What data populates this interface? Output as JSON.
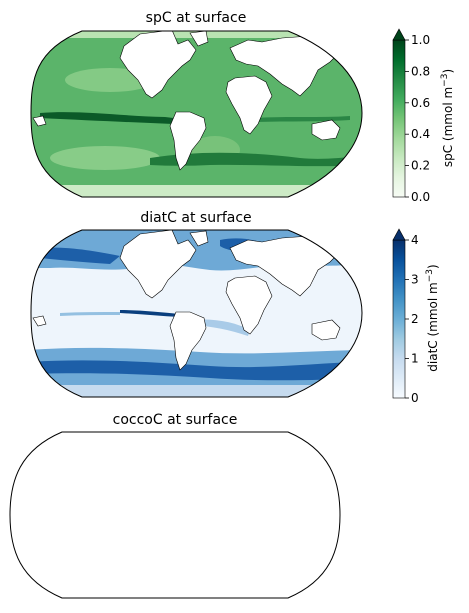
{
  "panels": [
    {
      "title": "spC at surface",
      "colorbar": {
        "label_main": "spC (mmol m",
        "label_exp": "−3",
        "label_tail": ")",
        "ticks": [
          "0.0",
          "0.2",
          "0.4",
          "0.6",
          "0.8",
          "1.0"
        ],
        "range": [
          0,
          1
        ],
        "extend": "max",
        "colors": [
          "#f7fcf5",
          "#e5f5e0",
          "#c7e9c0",
          "#a1d99b",
          "#74c476",
          "#41ab5d",
          "#238b45",
          "#006d2c",
          "#00441b"
        ]
      },
      "ocean_color": "#5bb46a",
      "band_color": "#0b5a28"
    },
    {
      "title": "diatC at surface",
      "colorbar": {
        "label_main": "diatC (mmol m",
        "label_exp": "−3",
        "label_tail": ")",
        "ticks": [
          "0",
          "1",
          "2",
          "3",
          "4"
        ],
        "range": [
          0,
          4
        ],
        "extend": "max",
        "colors": [
          "#f7fbff",
          "#deebf7",
          "#c6dbef",
          "#9ecae1",
          "#6baed6",
          "#4292c6",
          "#2171b5",
          "#08519c",
          "#08306b"
        ]
      },
      "ocean_color": "#eef5fc",
      "band_color": "#1d5fa8"
    },
    {
      "title": "coccoC at surface"
    }
  ]
}
